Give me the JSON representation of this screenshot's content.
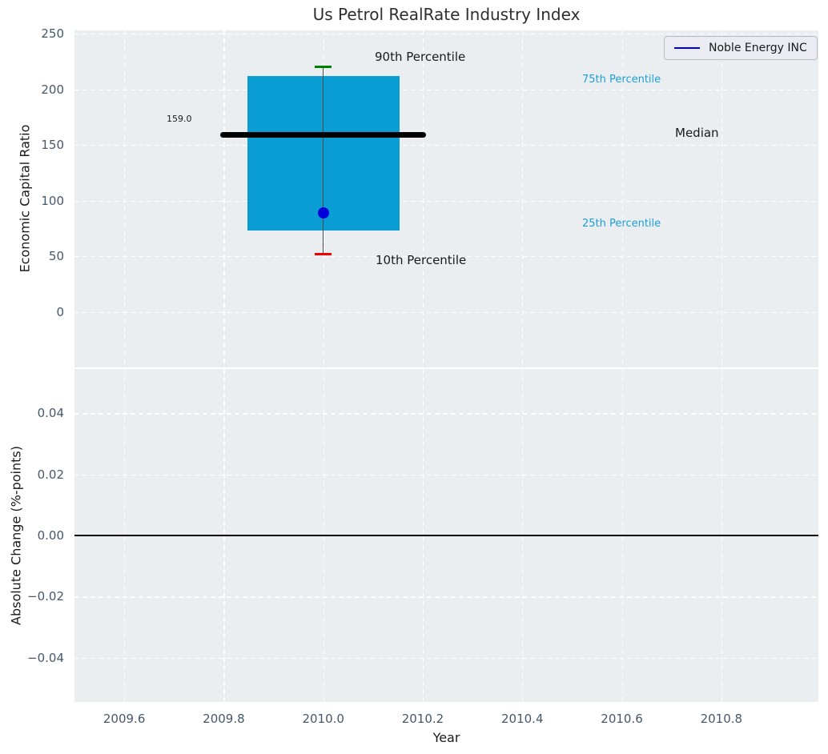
{
  "colors": {
    "panel_bg": "#eaeef0",
    "grid": "#ffffff",
    "box_fill": "#0a9dd4",
    "median_line": "#000000",
    "whisker": "#4a4a4a",
    "cap_90th": "#008000",
    "cap_10th": "#f20000",
    "company_marker": "#0000dd",
    "cyan_label": "#1c9fd6",
    "tick_label": "#46586c",
    "zero_line": "#000000"
  },
  "chart_data": [
    {
      "type": "boxplot",
      "title": "Us Petrol RealRate Industry Index",
      "ylabel": "Economic Capital Ratio",
      "ylim": [
        -50,
        253
      ],
      "yticks": [
        0,
        50,
        100,
        150,
        200,
        250
      ],
      "ytick_labels": [
        "0",
        "50",
        "100",
        "150",
        "200",
        "250"
      ],
      "grid": true,
      "x": 2010.0,
      "stats": {
        "p10": 52,
        "p25": 73,
        "median": 159,
        "p75": 212,
        "p90": 220
      },
      "company": {
        "name": "Noble Energy INC",
        "value": 89
      },
      "median_value_label": "159.0",
      "labels": {
        "p90": "90th Percentile",
        "p75": "75th Percentile",
        "median": "Median",
        "p25": "25th Percentile",
        "p10": "10th Percentile"
      },
      "legend": {
        "position": "upper right",
        "entries": [
          {
            "label": "Noble Energy INC",
            "color": "#0000dd"
          }
        ]
      }
    },
    {
      "type": "line",
      "ylabel": "Absolute Change (%-points)",
      "ylim": [
        -0.0545,
        0.0545
      ],
      "yticks": [
        0.04,
        0.02,
        0,
        -0.02,
        -0.04
      ],
      "ytick_labels": [
        "0.04",
        "0.02",
        "0.00",
        "−0.02",
        "−0.04"
      ],
      "grid": true,
      "zero_line": 0,
      "series": []
    }
  ],
  "x_axis": {
    "label": "Year",
    "xlim": [
      2009.5,
      2010.995
    ],
    "ticks": [
      2009.6,
      2009.8,
      2010.0,
      2010.2,
      2010.4,
      2010.6,
      2010.8
    ],
    "tick_labels": [
      "2009.6",
      "2009.8",
      "2010.0",
      "2010.2",
      "2010.4",
      "2010.6",
      "2010.8"
    ]
  }
}
